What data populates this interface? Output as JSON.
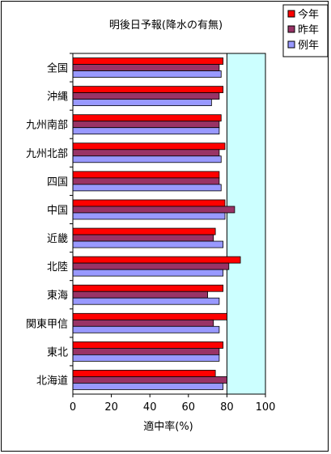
{
  "chart_data": {
    "type": "bar",
    "orientation": "horizontal",
    "title": "明後日予報(降水の有無)",
    "xlabel": "適中率(%)",
    "ylabel": "",
    "xlim": [
      0,
      100
    ],
    "xticks": [
      "0",
      "20",
      "40",
      "60",
      "80",
      "100"
    ],
    "highlight_range": [
      80,
      100
    ],
    "grid": false,
    "legend_position": "top-right",
    "categories": [
      "全国",
      "沖縄",
      "九州南部",
      "九州北部",
      "四国",
      "中国",
      "近畿",
      "北陸",
      "東海",
      "関東甲信",
      "東北",
      "北海道"
    ],
    "series": [
      {
        "name": "今年",
        "color": "#ff0000",
        "values": [
          78,
          78,
          77,
          79,
          76,
          79,
          74,
          87,
          78,
          80,
          78,
          74
        ]
      },
      {
        "name": "昨年",
        "color": "#993366",
        "values": [
          76,
          76,
          76,
          76,
          76,
          84,
          73,
          81,
          70,
          73,
          76,
          80
        ]
      },
      {
        "name": "例年",
        "color": "#9999ff",
        "values": [
          77,
          72,
          76,
          77,
          77,
          79,
          78,
          78,
          76,
          76,
          76,
          78
        ]
      }
    ]
  }
}
